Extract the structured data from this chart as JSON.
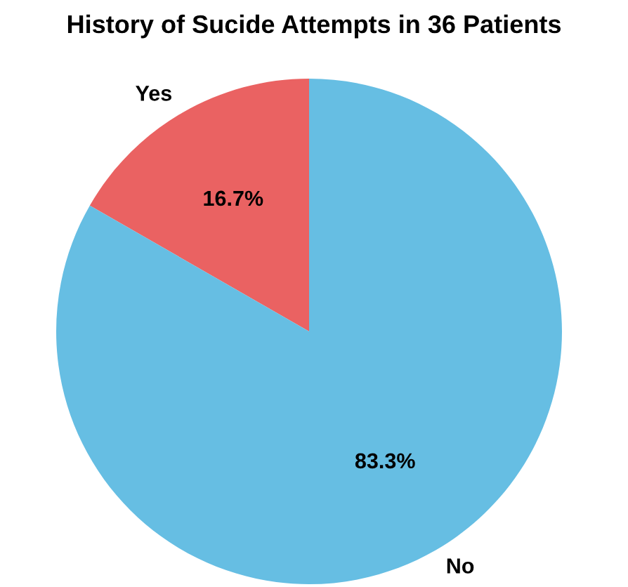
{
  "chart_data": {
    "type": "pie",
    "title": "History of Sucide Attempts in 36 Patients",
    "categories": [
      "Yes",
      "No"
    ],
    "values": [
      16.7,
      83.3
    ],
    "colors": [
      "#ea6262",
      "#66bee3"
    ],
    "value_labels": [
      "16.7%",
      "83.3%"
    ]
  }
}
